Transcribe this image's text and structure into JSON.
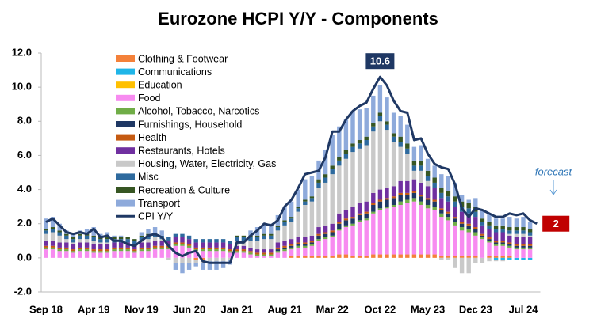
{
  "chart_data": {
    "type": "bar",
    "stacked": true,
    "title": "Eurozone HCPI Y/Y - Components",
    "categories": [
      "Sep 18",
      null,
      null,
      null,
      null,
      null,
      null,
      "Apr 19",
      null,
      null,
      null,
      null,
      null,
      null,
      "Nov 19",
      null,
      null,
      null,
      null,
      null,
      null,
      "Jun 20",
      null,
      null,
      null,
      null,
      null,
      null,
      "Jan 21",
      null,
      null,
      null,
      null,
      null,
      null,
      "Aug 21",
      null,
      null,
      null,
      null,
      null,
      null,
      "Mar 22",
      null,
      null,
      null,
      null,
      null,
      null,
      "Oct 22",
      null,
      null,
      null,
      null,
      null,
      null,
      "May 23",
      null,
      null,
      null,
      null,
      null,
      null,
      "Dec 23",
      null,
      null,
      null,
      null,
      null,
      null,
      "Jul 24",
      null,
      null
    ],
    "ylim": [
      -2,
      12
    ],
    "yticks": [
      {
        "value": -2,
        "label": "-2.0"
      },
      {
        "value": 0,
        "label": "0.0"
      },
      {
        "value": 2,
        "label": "2.0"
      },
      {
        "value": 4,
        "label": "4.0"
      },
      {
        "value": 6,
        "label": "6.0"
      },
      {
        "value": 8,
        "label": "8.0"
      },
      {
        "value": 10,
        "label": "10.0"
      },
      {
        "value": 12,
        "label": "12.0"
      }
    ],
    "grid": false,
    "legend": "upper left",
    "annotation": "forecast",
    "series": [
      {
        "name": "Clothing & Footwear",
        "color": "#f4813a",
        "values": [
          0,
          0,
          0,
          0,
          0,
          0,
          0,
          0,
          0,
          0,
          0,
          0,
          0,
          0,
          0,
          0,
          0,
          0,
          0,
          0,
          0,
          0,
          -0.1,
          -0.1,
          0,
          0,
          0,
          0,
          0,
          0,
          0,
          0,
          0,
          0,
          0,
          0,
          0.1,
          0.1,
          0.1,
          0.1,
          0.1,
          0.1,
          0.1,
          0.2,
          0.2,
          0.1,
          0.1,
          0.1,
          0.2,
          0.2,
          0.2,
          0.2,
          0.2,
          0.2,
          0.2,
          0.2,
          0.2,
          0.2,
          0.1,
          0.1,
          0.1,
          0.1,
          0.1,
          0.1,
          0,
          0.1,
          0.1,
          0.1,
          0.1,
          0,
          0,
          0,
          null
        ]
      },
      {
        "name": "Communications",
        "color": "#1fb5e8",
        "values": [
          0,
          0,
          0,
          0,
          0,
          0,
          0,
          0,
          0,
          0,
          0,
          0,
          0,
          0,
          0,
          0,
          0,
          0,
          0,
          0,
          0,
          0,
          0,
          0,
          0,
          0,
          0,
          0,
          0,
          0,
          0,
          0,
          0,
          0,
          0,
          0,
          0,
          0,
          0,
          0,
          0,
          0,
          0,
          0,
          0,
          0,
          0,
          0,
          0,
          0,
          0,
          0,
          0,
          0,
          0,
          0,
          0,
          0,
          0,
          0,
          0,
          0,
          0,
          0,
          0,
          0,
          -0.1,
          -0.1,
          -0.1,
          -0.1,
          -0.1,
          -0.1,
          null
        ]
      },
      {
        "name": "Education",
        "color": "#ffc000",
        "values": [
          0,
          0,
          0,
          0,
          0,
          0,
          0,
          0,
          0,
          0,
          0,
          0,
          0,
          0,
          0,
          0,
          0,
          0,
          0,
          0,
          0,
          0,
          0,
          0,
          0,
          0,
          0,
          0,
          0,
          0,
          0,
          0,
          0,
          0,
          0,
          0,
          0,
          0,
          0,
          0,
          0,
          0,
          0,
          0,
          0,
          0,
          0,
          0,
          0,
          0,
          0,
          0,
          0,
          0,
          0,
          0,
          0,
          0,
          0,
          0,
          0,
          0,
          0,
          0,
          0,
          0,
          0,
          0,
          0,
          0,
          0,
          0,
          null
        ]
      },
      {
        "name": "Food",
        "color": "#f78bf0",
        "values": [
          0.5,
          0.5,
          0.4,
          0.4,
          0.3,
          0.4,
          0.4,
          0.3,
          0.3,
          0.3,
          0.4,
          0.4,
          0.4,
          0.3,
          0.4,
          0.4,
          0.5,
          0.5,
          0.5,
          0.7,
          0.7,
          0.6,
          0.4,
          0.4,
          0.4,
          0.4,
          0.4,
          0.3,
          0.3,
          0.3,
          0.2,
          0.1,
          0.1,
          0.1,
          0.3,
          0.4,
          0.4,
          0.5,
          0.5,
          0.6,
          0.9,
          1.0,
          1.1,
          1.4,
          1.6,
          1.8,
          2.0,
          2.1,
          2.4,
          2.6,
          2.7,
          2.8,
          2.9,
          3.0,
          3.1,
          2.9,
          2.7,
          2.6,
          2.3,
          2.1,
          1.8,
          1.5,
          1.4,
          1.2,
          1.1,
          0.8,
          0.6,
          0.6,
          0.5,
          0.5,
          0.5,
          0.5,
          null
        ]
      },
      {
        "name": "Alcohol, Tobacco, Narcotics",
        "color": "#70ad47",
        "values": [
          0.1,
          0.1,
          0.1,
          0.1,
          0.1,
          0.1,
          0.1,
          0.1,
          0.1,
          0.1,
          0.1,
          0.1,
          0.1,
          0.1,
          0.1,
          0.1,
          0.1,
          0.1,
          0.1,
          0.1,
          0.1,
          0.1,
          0.1,
          0.1,
          0.1,
          0.1,
          0.1,
          0.1,
          0.1,
          0.1,
          0.1,
          0.1,
          0.1,
          0.1,
          0.1,
          0.1,
          0.1,
          0.1,
          0.1,
          0.1,
          0.1,
          0.1,
          0.1,
          0.1,
          0.1,
          0.1,
          0.1,
          0.1,
          0.1,
          0.1,
          0.1,
          0.1,
          0.2,
          0.2,
          0.2,
          0.2,
          0.2,
          0.2,
          0.2,
          0.2,
          0.2,
          0.2,
          0.2,
          0.2,
          0.1,
          0.1,
          0.1,
          0.1,
          0.1,
          0.1,
          0.1,
          0.1,
          null
        ]
      },
      {
        "name": "Furnishings, Household",
        "color": "#1f3864",
        "values": [
          0,
          0,
          0,
          0,
          0,
          0,
          0,
          0,
          0,
          0,
          0,
          0,
          0,
          0,
          0,
          0,
          0,
          0,
          0,
          0,
          0,
          0,
          0,
          0,
          0,
          0,
          0,
          0,
          0,
          0,
          0,
          0,
          0,
          0,
          0.1,
          0.1,
          0.1,
          0.1,
          0.1,
          0.1,
          0.2,
          0.2,
          0.2,
          0.3,
          0.3,
          0.3,
          0.3,
          0.3,
          0.4,
          0.4,
          0.4,
          0.4,
          0.4,
          0.3,
          0.3,
          0.3,
          0.3,
          0.3,
          0.2,
          0.2,
          0.2,
          0.2,
          0.2,
          0.2,
          0.1,
          0.1,
          0.1,
          0.1,
          0.1,
          0.1,
          0.1,
          0.1,
          null
        ]
      },
      {
        "name": "Health",
        "color": "#c55a11",
        "values": [
          0.1,
          0.1,
          0.1,
          0.1,
          0.1,
          0.1,
          0.1,
          0.1,
          0.1,
          0.1,
          0.1,
          0.1,
          0.1,
          0.1,
          0.1,
          0.1,
          0.1,
          0.1,
          0.1,
          0.1,
          0.1,
          0.1,
          0.1,
          0.1,
          0.1,
          0.1,
          0.1,
          0.1,
          0.1,
          0.1,
          0.1,
          0.1,
          0.1,
          0.1,
          0.1,
          0.1,
          0.1,
          0.1,
          0.1,
          0.1,
          0.1,
          0.1,
          0.1,
          0.1,
          0.1,
          0.1,
          0.1,
          0.1,
          0.1,
          0.1,
          0.1,
          0.1,
          0.1,
          0.1,
          0.1,
          0.1,
          0.1,
          0.1,
          0.1,
          0.1,
          0.1,
          0.1,
          0.1,
          0.1,
          0.1,
          0.1,
          0.1,
          0.1,
          0.1,
          0.1,
          0.1,
          0.1,
          null
        ]
      },
      {
        "name": "Restaurants, Hotels",
        "color": "#7030a0",
        "values": [
          0.3,
          0.3,
          0.3,
          0.3,
          0.3,
          0.3,
          0.3,
          0.3,
          0.3,
          0.3,
          0.3,
          0.3,
          0.3,
          0.3,
          0.3,
          0.3,
          0.3,
          0.3,
          0.3,
          0.3,
          0.3,
          0.3,
          0.3,
          0.3,
          0.3,
          0.3,
          0.3,
          0.3,
          0.2,
          0.2,
          0.2,
          0.2,
          0.2,
          0.2,
          0.3,
          0.3,
          0.3,
          0.3,
          0.3,
          0.3,
          0.4,
          0.4,
          0.4,
          0.5,
          0.5,
          0.6,
          0.6,
          0.6,
          0.6,
          0.6,
          0.6,
          0.6,
          0.7,
          0.7,
          0.7,
          0.7,
          0.7,
          0.7,
          0.6,
          0.6,
          0.6,
          0.6,
          0.6,
          0.6,
          0.5,
          0.5,
          0.5,
          0.5,
          0.4,
          0.4,
          0.4,
          0.4,
          null
        ]
      },
      {
        "name": "Housing, Water, Electricity, Gas",
        "color": "#c9c9c9",
        "values": [
          0.4,
          0.5,
          0.4,
          0.2,
          0.1,
          0.2,
          0.2,
          0.2,
          0.1,
          0.1,
          0,
          0,
          0,
          0,
          0.1,
          0.2,
          0.2,
          0.1,
          -0.1,
          -0.3,
          -0.3,
          -0.3,
          -0.2,
          -0.2,
          -0.2,
          -0.2,
          -0.2,
          -0.1,
          0.3,
          0.3,
          0.4,
          0.5,
          0.6,
          0.6,
          0.7,
          0.9,
          1.0,
          1.5,
          1.9,
          2.0,
          2.3,
          2.5,
          2.9,
          2.8,
          3.0,
          3.2,
          3.2,
          3.3,
          3.6,
          4.0,
          3.4,
          2.6,
          2.0,
          1.6,
          0.5,
          0.7,
          0.3,
          0,
          -0.1,
          -0.1,
          -0.6,
          -0.9,
          -0.9,
          -0.3,
          -0.3,
          -0.2,
          -0.1,
          -0.1,
          0.1,
          0.2,
          0.2,
          0.1,
          null
        ]
      },
      {
        "name": "Misc",
        "color": "#2e6a9e",
        "values": [
          0.2,
          0.2,
          0.2,
          0.2,
          0.2,
          0.2,
          0.2,
          0.2,
          0.2,
          0.2,
          0.2,
          0.2,
          0.2,
          0.2,
          0.2,
          0.2,
          0.2,
          0.2,
          0.2,
          0.2,
          0.2,
          0.2,
          0.2,
          0.2,
          0.2,
          0.2,
          0.2,
          0.2,
          0.2,
          0.2,
          0.2,
          0.2,
          0.2,
          0.2,
          0.2,
          0.2,
          0.2,
          0.2,
          0.2,
          0.2,
          0.3,
          0.3,
          0.3,
          0.3,
          0.3,
          0.3,
          0.3,
          0.3,
          0.3,
          0.3,
          0.3,
          0.3,
          0.3,
          0.3,
          0.3,
          0.3,
          0.3,
          0.3,
          0.3,
          0.3,
          0.3,
          0.3,
          0.3,
          0.3,
          0.2,
          0.2,
          0.2,
          0.2,
          0.2,
          0.2,
          0.2,
          0.2,
          null
        ]
      },
      {
        "name": "Recreation & Culture",
        "color": "#375623",
        "values": [
          0.1,
          0.1,
          0.1,
          0.1,
          0.1,
          0.1,
          0.1,
          0.1,
          0.1,
          0.1,
          0.1,
          0.1,
          0.1,
          0.1,
          0.1,
          0.1,
          0,
          0,
          0,
          0,
          0,
          0,
          0,
          0,
          0,
          0,
          0,
          0,
          0.1,
          0.1,
          0.1,
          0.1,
          0.1,
          0.1,
          0.1,
          0.1,
          0.1,
          0.1,
          0.1,
          0.1,
          0.2,
          0.2,
          0.2,
          0.2,
          0.2,
          0.2,
          0.2,
          0.2,
          0.2,
          0.2,
          0.2,
          0.2,
          0.3,
          0.3,
          0.3,
          0.3,
          0.3,
          0.3,
          0.3,
          0.3,
          0.3,
          0.3,
          0.3,
          0.3,
          0.2,
          0.2,
          0.2,
          0.2,
          0.2,
          0.2,
          0.2,
          0.2,
          null
        ]
      },
      {
        "name": "Transport",
        "color": "#8eaadb",
        "values": [
          0.6,
          0.6,
          0.4,
          0.2,
          0.2,
          0.2,
          0.3,
          0.5,
          0.2,
          0.3,
          0.1,
          0.1,
          0,
          0,
          0.2,
          0.3,
          0.4,
          0.3,
          0,
          -0.4,
          -0.6,
          -0.4,
          -0.2,
          -0.4,
          -0.5,
          -0.5,
          -0.4,
          -0.3,
          0,
          0,
          0.3,
          0.5,
          0.6,
          0.6,
          0.6,
          0.8,
          0.9,
          1.0,
          1.2,
          1.2,
          1.1,
          1.4,
          1.8,
          1.8,
          1.8,
          1.9,
          1.8,
          1.7,
          1.6,
          1.6,
          1.4,
          1.2,
          1.2,
          1.1,
          0.8,
          0.9,
          0.7,
          0.7,
          0.8,
          0.9,
          0.8,
          0.4,
          0.2,
          0.5,
          0.5,
          0.5,
          0.4,
          0.4,
          0.6,
          0.5,
          0.6,
          0.4,
          null
        ]
      },
      {
        "name": "CPI Y/Y",
        "color": "#1f3864",
        "type": "line",
        "values": [
          2.1,
          2.3,
          1.9,
          1.5,
          1.4,
          1.5,
          1.4,
          1.7,
          1.2,
          1.3,
          1.0,
          1.0,
          0.8,
          0.7,
          1.0,
          1.3,
          1.4,
          1.2,
          0.7,
          0.3,
          0.1,
          0.3,
          0.4,
          -0.2,
          -0.3,
          -0.3,
          -0.3,
          -0.3,
          0.9,
          0.9,
          1.3,
          1.6,
          2.0,
          1.9,
          2.2,
          3.0,
          3.4,
          4.1,
          4.9,
          5.0,
          5.1,
          5.9,
          7.4,
          7.4,
          8.1,
          8.6,
          8.9,
          9.1,
          9.9,
          10.6,
          10.1,
          9.2,
          8.6,
          8.5,
          6.9,
          7.0,
          6.1,
          5.5,
          5.3,
          5.2,
          4.3,
          2.9,
          2.4,
          2.9,
          2.8,
          2.6,
          2.4,
          2.4,
          2.6,
          2.5,
          2.6,
          2.2,
          2.0
        ]
      }
    ]
  }
}
